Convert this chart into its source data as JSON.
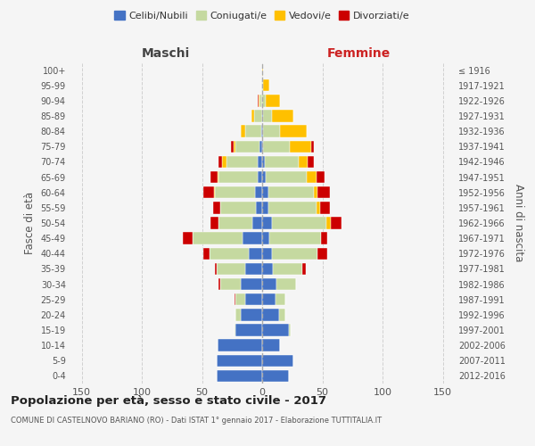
{
  "age_groups": [
    "100+",
    "95-99",
    "90-94",
    "85-89",
    "80-84",
    "75-79",
    "70-74",
    "65-69",
    "60-64",
    "55-59",
    "50-54",
    "45-49",
    "40-44",
    "35-39",
    "30-34",
    "25-29",
    "20-24",
    "15-19",
    "10-14",
    "5-9",
    "0-4"
  ],
  "birth_years": [
    "≤ 1916",
    "1917-1921",
    "1922-1926",
    "1927-1931",
    "1932-1936",
    "1937-1941",
    "1942-1946",
    "1947-1951",
    "1952-1956",
    "1957-1961",
    "1962-1966",
    "1967-1971",
    "1972-1976",
    "1977-1981",
    "1982-1986",
    "1987-1991",
    "1992-1996",
    "1997-2001",
    "2002-2006",
    "2007-2011",
    "2012-2016"
  ],
  "male": {
    "celibe": [
      0,
      0,
      0,
      0,
      1,
      2,
      4,
      4,
      6,
      5,
      8,
      16,
      11,
      14,
      18,
      14,
      18,
      22,
      37,
      38,
      38
    ],
    "coniugato": [
      0,
      1,
      2,
      7,
      13,
      20,
      26,
      32,
      33,
      30,
      28,
      42,
      33,
      24,
      17,
      8,
      4,
      1,
      0,
      0,
      0
    ],
    "vedovo": [
      0,
      0,
      1,
      2,
      4,
      2,
      3,
      1,
      1,
      0,
      0,
      0,
      0,
      0,
      0,
      0,
      0,
      0,
      0,
      0,
      0
    ],
    "divorziato": [
      0,
      0,
      1,
      0,
      0,
      2,
      3,
      6,
      9,
      6,
      7,
      8,
      5,
      1,
      1,
      1,
      0,
      0,
      0,
      0,
      0
    ]
  },
  "female": {
    "nubile": [
      0,
      0,
      0,
      1,
      1,
      1,
      2,
      3,
      5,
      5,
      8,
      6,
      8,
      9,
      12,
      11,
      14,
      22,
      15,
      26,
      22
    ],
    "coniugata": [
      0,
      1,
      3,
      7,
      14,
      22,
      28,
      34,
      38,
      40,
      45,
      43,
      38,
      24,
      16,
      8,
      5,
      2,
      0,
      0,
      0
    ],
    "vedova": [
      1,
      5,
      12,
      18,
      22,
      18,
      8,
      8,
      3,
      3,
      4,
      0,
      0,
      0,
      0,
      0,
      0,
      0,
      0,
      0,
      0
    ],
    "divorziata": [
      0,
      0,
      0,
      0,
      0,
      2,
      5,
      7,
      10,
      8,
      9,
      5,
      8,
      3,
      0,
      0,
      0,
      0,
      0,
      0,
      0
    ]
  },
  "colors": {
    "celibe": "#4472c4",
    "coniugato": "#c5d9a0",
    "vedovo": "#ffc000",
    "divorziato": "#cc0000"
  },
  "title": "Popolazione per età, sesso e stato civile - 2017",
  "subtitle": "COMUNE DI CASTELNOVO BARIANO (RO) - Dati ISTAT 1° gennaio 2017 - Elaborazione TUTTITALIA.IT",
  "xlabel_left": "Maschi",
  "xlabel_right": "Femmine",
  "ylabel_left": "Fasce di età",
  "ylabel_right": "Anni di nascita",
  "xlim": 160,
  "bg_color": "#f5f5f5",
  "grid_color": "#cccccc"
}
